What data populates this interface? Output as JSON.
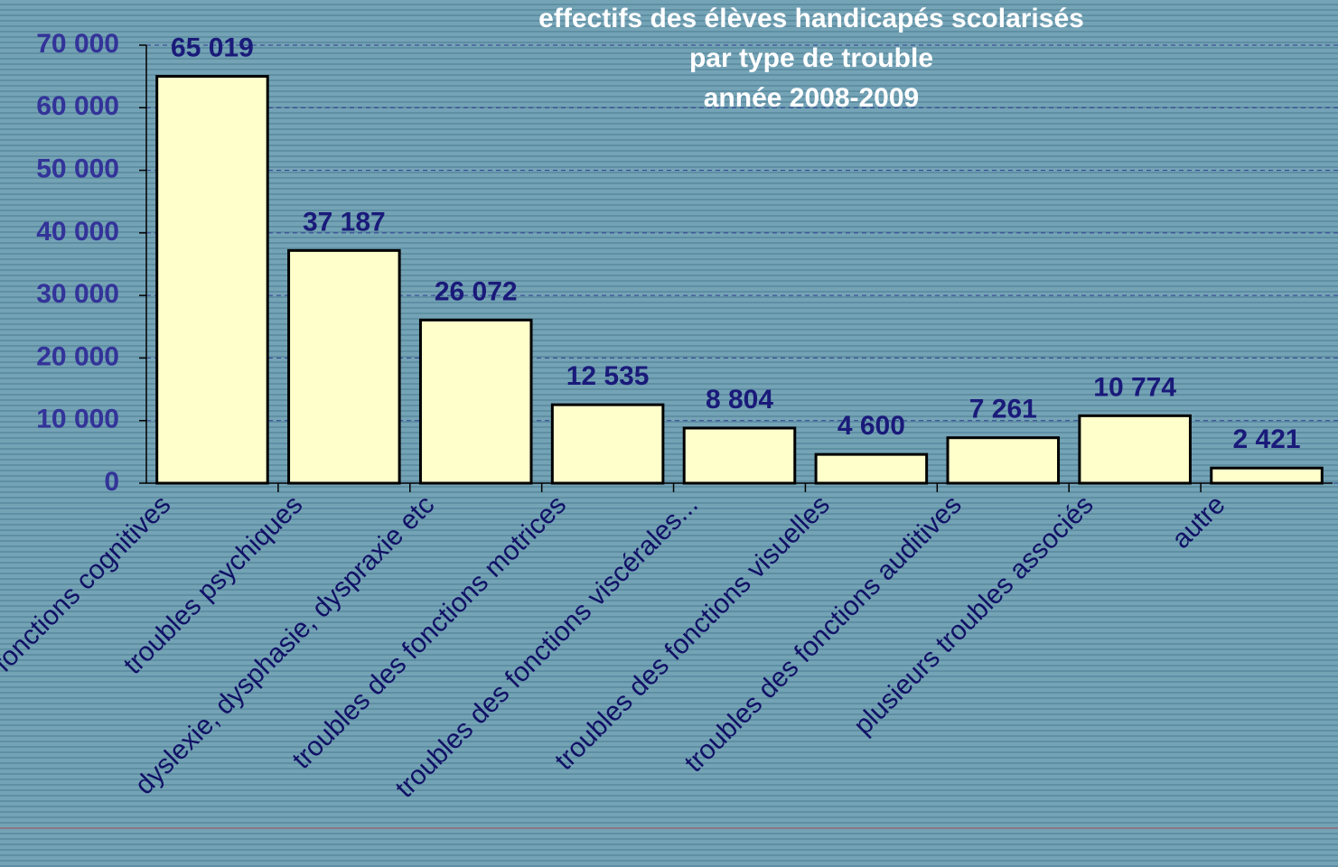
{
  "chart_data": {
    "type": "bar",
    "title": [
      "effectifs des élèves handicapés scolarisés",
      "par type de trouble",
      "année 2008-2009"
    ],
    "categories": [
      "troubles des fonctions cognitives",
      "troubles psychiques",
      "dyslexie, dysphasie, dyspraxie etc",
      "troubles des fonctions motrices",
      "troubles des fonctions  viscérales...",
      "troubles des fonctions  visuelles",
      "troubles des fonctions  auditives",
      "plusieurs troubles associés",
      "autre"
    ],
    "values": [
      65019,
      37187,
      26072,
      12535,
      8804,
      4600,
      7261,
      10774,
      2421
    ],
    "value_labels": [
      "65 019",
      "37 187",
      "26 072",
      "12 535",
      "8 804",
      "4 600",
      "7 261",
      "10 774",
      "2 421"
    ],
    "color": "#ffffcc",
    "ylim": [
      0,
      70000
    ],
    "yticks": [
      0,
      {
        "value": 10000,
        "label": "10 000"
      },
      {
        "value": 20000,
        "label": "20 000"
      },
      {
        "value": 30000,
        "label": "30 000"
      },
      {
        "value": 40000,
        "label": "40 000"
      },
      {
        "value": 50000,
        "label": "50 000"
      },
      {
        "value": 60000,
        "label": "60 000"
      },
      {
        "value": 70000,
        "label": "70 000"
      }
    ],
    "grid": true
  }
}
